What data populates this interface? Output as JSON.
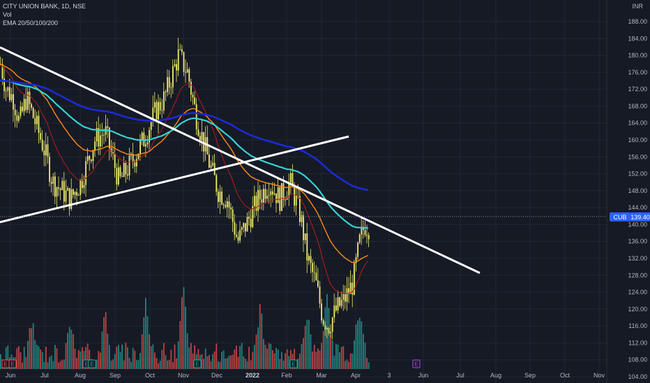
{
  "legend": {
    "symbol": "CITY UNION BANK, 1D, NSE",
    "vol": "Vol",
    "ema": "EMA 20/50/100/200"
  },
  "currency": "INR",
  "price_tag": {
    "ticker": "CUB",
    "value": "139.40"
  },
  "events": {
    "label": "E"
  },
  "colors": {
    "background": "#161a25",
    "grid": "#232733",
    "candle_up": "#f0ec6a",
    "candle_down": "#f0ec6a",
    "vol_up": "#26a69a",
    "vol_down": "#ef5350",
    "ema20": "#b71c1c",
    "ema50": "#ff8c1a",
    "ema100": "#33d4d4",
    "ema200": "#1a2bd6",
    "trendline": "#ffffff",
    "price_tag": "#2962ff"
  },
  "chart_data": {
    "type": "line",
    "title": "CITY UNION BANK, 1D, NSE",
    "y_ticks": [
      "104.00",
      "108.00",
      "112.00",
      "116.00",
      "120.00",
      "124.00",
      "128.00",
      "132.00",
      "136.00",
      "140.00",
      "144.00",
      "148.00",
      "152.00",
      "156.00",
      "160.00",
      "164.00",
      "168.00",
      "172.00",
      "176.00",
      "180.00",
      "184.00",
      "188.00"
    ],
    "ylim": [
      102,
      190
    ],
    "x_ticks": [
      "Jun",
      "Jul",
      "Aug",
      "Sep",
      "Oct",
      "Nov",
      "Dec",
      "2022",
      "Feb",
      "Mar",
      "Apr",
      "3",
      "Jun",
      "Jul",
      "Aug",
      "Sep",
      "Oct",
      "Nov"
    ],
    "x": [
      "2021-06-01",
      "2021-07-01",
      "2021-08-01",
      "2021-09-01",
      "2021-10-01",
      "2021-11-01",
      "2021-12-01",
      "2022-01-01",
      "2022-02-01",
      "2022-03-01",
      "2022-04-01",
      "2022-04-12"
    ],
    "series": [
      {
        "name": "Close",
        "values": [
          172,
          166,
          147,
          158,
          162,
          168,
          142,
          150,
          146,
          126,
          140,
          139.4
        ]
      },
      {
        "name": "EMA 20",
        "values": [
          168,
          166,
          150,
          156,
          160,
          164,
          148,
          146,
          144,
          125,
          128,
          132
        ]
      },
      {
        "name": "EMA 50",
        "values": [
          167,
          166,
          154,
          157,
          160,
          165,
          152,
          148,
          147,
          131,
          128,
          132
        ]
      },
      {
        "name": "EMA 100",
        "values": [
          166,
          166,
          158,
          158,
          158,
          164,
          156,
          151,
          148,
          143,
          137,
          137.5
        ]
      },
      {
        "name": "EMA 200",
        "values": [
          166,
          166,
          164,
          163,
          162,
          161,
          160,
          156,
          152,
          148,
          145,
          145
        ]
      }
    ],
    "volume_profile": "high spikes late Sep, Nov, Jan and Mar; tallest bar in Mar"
  }
}
